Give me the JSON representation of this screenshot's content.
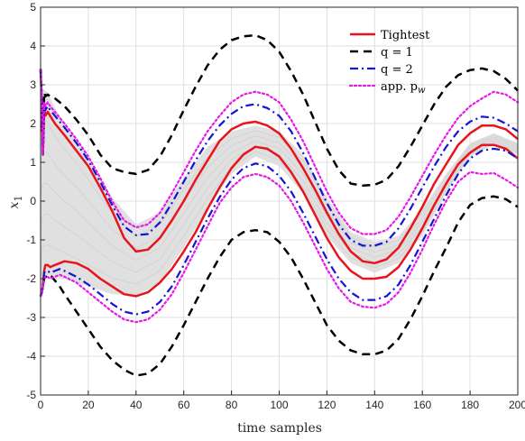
{
  "chart_data": {
    "type": "line",
    "title": "",
    "xlabel": "time samples",
    "ylabel": "x",
    "ylabel_subscript": "1",
    "xlim": [
      0,
      200
    ],
    "ylim": [
      -5,
      5
    ],
    "xticks": [
      "0",
      "20",
      "40",
      "60",
      "80",
      "100",
      "120",
      "140",
      "160",
      "180",
      "200"
    ],
    "yticks": [
      "-5",
      "-4",
      "-3",
      "-2",
      "-1",
      "0",
      "1",
      "2",
      "3",
      "4",
      "5"
    ],
    "grid": true,
    "legend_position": "top-right",
    "trajectory_band": {
      "color": "#e0e0e0",
      "x": [
        0,
        1,
        3,
        6,
        10,
        15,
        20,
        30,
        40,
        50,
        60,
        70,
        80,
        90,
        100,
        110,
        120,
        130,
        140,
        150,
        160,
        170,
        180,
        190,
        200
      ],
      "upper": [
        2.6,
        2.9,
        2.8,
        2.4,
        2.0,
        1.6,
        1.1,
        0.1,
        -0.6,
        -0.3,
        0.6,
        1.4,
        1.8,
        1.95,
        1.8,
        1.2,
        0.1,
        -0.8,
        -1.05,
        -0.9,
        -0.2,
        0.7,
        1.5,
        1.75,
        1.5
      ],
      "lower": [
        -2.4,
        -2.0,
        -1.9,
        -1.95,
        -2.0,
        -2.1,
        -2.2,
        -2.4,
        -2.45,
        -2.1,
        -1.2,
        -0.2,
        0.7,
        1.15,
        0.9,
        0.2,
        -0.9,
        -1.6,
        -1.85,
        -1.6,
        -0.9,
        0.2,
        1.15,
        1.45,
        1.2
      ]
    },
    "series": [
      {
        "name": "Tightest",
        "color": "#e8141c",
        "dash": "solid",
        "width": 2.5,
        "x": [
          0,
          0.5,
          1,
          1.5,
          2,
          3,
          4,
          6,
          8,
          10,
          15,
          20,
          25,
          30,
          35,
          40,
          45,
          50,
          55,
          60,
          65,
          70,
          75,
          80,
          85,
          90,
          95,
          100,
          105,
          110,
          115,
          120,
          125,
          130,
          135,
          140,
          145,
          150,
          155,
          160,
          165,
          170,
          175,
          180,
          185,
          190,
          195,
          200
        ],
        "upper": [
          3.4,
          2.6,
          1.2,
          2.4,
          2.2,
          2.3,
          2.2,
          2.0,
          1.85,
          1.7,
          1.3,
          0.9,
          0.35,
          -0.25,
          -0.95,
          -1.3,
          -1.25,
          -0.95,
          -0.5,
          0.0,
          0.55,
          1.05,
          1.55,
          1.85,
          2.0,
          2.05,
          1.95,
          1.75,
          1.35,
          0.85,
          0.3,
          -0.3,
          -0.85,
          -1.3,
          -1.55,
          -1.6,
          -1.5,
          -1.2,
          -0.7,
          -0.15,
          0.45,
          0.95,
          1.45,
          1.75,
          1.95,
          1.95,
          1.85,
          1.6
        ],
        "lower": [
          -2.45,
          -2.35,
          -2.2,
          -1.8,
          -1.65,
          -1.65,
          -1.7,
          -1.65,
          -1.6,
          -1.55,
          -1.6,
          -1.75,
          -2.0,
          -2.2,
          -2.4,
          -2.45,
          -2.35,
          -2.1,
          -1.75,
          -1.3,
          -0.8,
          -0.2,
          0.35,
          0.85,
          1.2,
          1.4,
          1.35,
          1.15,
          0.75,
          0.25,
          -0.35,
          -0.95,
          -1.45,
          -1.8,
          -2.0,
          -2.0,
          -1.95,
          -1.7,
          -1.25,
          -0.7,
          -0.1,
          0.45,
          0.95,
          1.25,
          1.45,
          1.45,
          1.35,
          1.1
        ]
      },
      {
        "name": "q = 1",
        "color": "#000000",
        "dash": "dashed",
        "width": 2.5,
        "x": [
          0,
          0.5,
          1,
          1.5,
          2,
          3,
          4,
          6,
          8,
          10,
          15,
          20,
          25,
          30,
          35,
          40,
          45,
          50,
          55,
          60,
          65,
          70,
          75,
          80,
          85,
          90,
          95,
          100,
          105,
          110,
          115,
          120,
          125,
          130,
          135,
          140,
          145,
          150,
          155,
          160,
          165,
          170,
          175,
          180,
          185,
          190,
          195,
          200
        ],
        "upper": [
          3.4,
          2.6,
          1.2,
          2.8,
          2.7,
          2.75,
          2.7,
          2.65,
          2.55,
          2.45,
          2.1,
          1.7,
          1.2,
          0.85,
          0.75,
          0.7,
          0.8,
          1.15,
          1.7,
          2.35,
          2.95,
          3.5,
          3.9,
          4.15,
          4.25,
          4.28,
          4.15,
          3.85,
          3.35,
          2.75,
          2.05,
          1.35,
          0.8,
          0.45,
          0.4,
          0.42,
          0.55,
          0.9,
          1.4,
          1.95,
          2.5,
          2.95,
          3.25,
          3.38,
          3.42,
          3.35,
          3.15,
          2.85
        ],
        "lower": [
          -2.45,
          -2.35,
          -2.2,
          -2.0,
          -1.95,
          -1.95,
          -1.9,
          -2.05,
          -2.2,
          -2.4,
          -2.85,
          -3.3,
          -3.75,
          -4.1,
          -4.35,
          -4.5,
          -4.45,
          -4.2,
          -3.75,
          -3.2,
          -2.6,
          -2.0,
          -1.45,
          -1.0,
          -0.8,
          -0.75,
          -0.8,
          -1.05,
          -1.45,
          -2.0,
          -2.6,
          -3.2,
          -3.6,
          -3.85,
          -3.95,
          -3.95,
          -3.85,
          -3.55,
          -3.05,
          -2.45,
          -1.8,
          -1.2,
          -0.55,
          -0.1,
          0.08,
          0.12,
          0.05,
          -0.15
        ]
      },
      {
        "name": "q = 2",
        "color": "#1414d2",
        "dash": "dashdot",
        "width": 2.2,
        "x": [
          0,
          0.5,
          1,
          1.5,
          2,
          3,
          4,
          6,
          8,
          10,
          15,
          20,
          25,
          30,
          35,
          40,
          45,
          50,
          55,
          60,
          65,
          70,
          75,
          80,
          85,
          90,
          95,
          100,
          105,
          110,
          115,
          120,
          125,
          130,
          135,
          140,
          145,
          150,
          155,
          160,
          165,
          170,
          175,
          180,
          185,
          190,
          195,
          200
        ],
        "upper": [
          3.4,
          2.6,
          1.2,
          2.5,
          2.35,
          2.45,
          2.35,
          2.2,
          2.05,
          1.9,
          1.5,
          1.05,
          0.5,
          -0.1,
          -0.65,
          -0.88,
          -0.85,
          -0.55,
          -0.05,
          0.5,
          1.05,
          1.55,
          1.95,
          2.25,
          2.45,
          2.5,
          2.4,
          2.2,
          1.8,
          1.25,
          0.6,
          -0.05,
          -0.6,
          -1.0,
          -1.15,
          -1.15,
          -1.05,
          -0.7,
          -0.2,
          0.35,
          0.9,
          1.4,
          1.8,
          2.05,
          2.18,
          2.15,
          2.0,
          1.8
        ],
        "lower": [
          -2.45,
          -2.35,
          -2.2,
          -1.85,
          -1.8,
          -1.8,
          -1.85,
          -1.8,
          -1.75,
          -1.8,
          -1.95,
          -2.15,
          -2.4,
          -2.65,
          -2.85,
          -2.92,
          -2.85,
          -2.6,
          -2.2,
          -1.65,
          -1.05,
          -0.45,
          0.1,
          0.55,
          0.85,
          0.97,
          0.9,
          0.65,
          0.25,
          -0.3,
          -0.9,
          -1.5,
          -2.0,
          -2.35,
          -2.55,
          -2.55,
          -2.45,
          -2.15,
          -1.65,
          -1.05,
          -0.45,
          0.15,
          0.7,
          1.1,
          1.3,
          1.35,
          1.3,
          1.1
        ]
      },
      {
        "name": "app. p_w",
        "color": "#e619e6",
        "dash": "dotted",
        "width": 2.2,
        "x": [
          0,
          0.5,
          1,
          1.5,
          2,
          3,
          4,
          6,
          8,
          10,
          15,
          20,
          25,
          30,
          35,
          40,
          45,
          50,
          55,
          60,
          65,
          70,
          75,
          80,
          85,
          90,
          95,
          100,
          105,
          110,
          115,
          120,
          125,
          130,
          135,
          140,
          145,
          150,
          155,
          160,
          165,
          170,
          175,
          180,
          185,
          190,
          195,
          200
        ],
        "upper": [
          3.4,
          2.6,
          1.2,
          2.55,
          2.45,
          2.55,
          2.45,
          2.3,
          2.15,
          2.0,
          1.6,
          1.15,
          0.6,
          0.0,
          -0.5,
          -0.68,
          -0.6,
          -0.3,
          0.2,
          0.75,
          1.3,
          1.8,
          2.2,
          2.55,
          2.75,
          2.82,
          2.75,
          2.55,
          2.1,
          1.55,
          0.9,
          0.25,
          -0.3,
          -0.7,
          -0.85,
          -0.85,
          -0.75,
          -0.4,
          0.1,
          0.65,
          1.2,
          1.7,
          2.15,
          2.45,
          2.65,
          2.82,
          2.75,
          2.55
        ],
        "lower": [
          -2.45,
          -2.35,
          -2.2,
          -2.0,
          -1.95,
          -1.95,
          -2.0,
          -1.95,
          -1.9,
          -1.95,
          -2.1,
          -2.35,
          -2.6,
          -2.85,
          -3.05,
          -3.12,
          -3.05,
          -2.8,
          -2.4,
          -1.85,
          -1.25,
          -0.65,
          -0.05,
          0.35,
          0.62,
          0.7,
          0.62,
          0.4,
          0.0,
          -0.55,
          -1.15,
          -1.75,
          -2.25,
          -2.6,
          -2.72,
          -2.75,
          -2.65,
          -2.35,
          -1.85,
          -1.25,
          -0.6,
          0.0,
          0.5,
          0.75,
          0.7,
          0.72,
          0.55,
          0.35
        ]
      }
    ],
    "legend_labels": [
      {
        "main": "Tightest",
        "sub": ""
      },
      {
        "main": "q = 1",
        "sub": ""
      },
      {
        "main": "q = 2",
        "sub": ""
      },
      {
        "main": "app. p",
        "sub": "w"
      }
    ]
  }
}
